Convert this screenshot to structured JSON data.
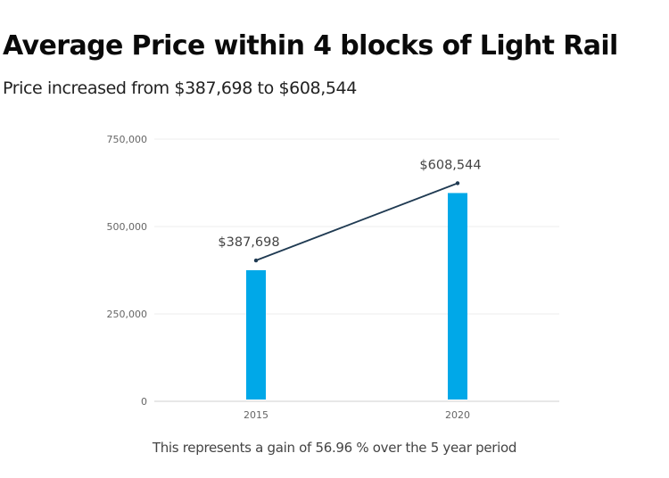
{
  "title": "Average Price within 4 blocks of Light Rail",
  "subtitle": "Price increased from $387,698 to $608,544",
  "caption": "This represents a gain of 56.96 % over the 5 year period",
  "colors": {
    "bar": "#00a8e8",
    "line": "#1f3a52",
    "grid": "#ececec",
    "axis": "#cfcfcf",
    "tick_text": "#666666",
    "label_text": "#444444"
  },
  "chart_data": {
    "type": "bar",
    "title": "Average Price within 4 blocks of Light Rail",
    "subtitle": "Price increased from $387,698 to $608,544",
    "xlabel": "",
    "ylabel": "",
    "categories": [
      "2015",
      "2020"
    ],
    "series": [
      {
        "name": "Average Price",
        "type": "bar",
        "values": [
          387698,
          608544
        ]
      },
      {
        "name": "Trend",
        "type": "line",
        "values": [
          387698,
          608544
        ]
      }
    ],
    "data_labels": [
      "$387,698",
      "$608,544"
    ],
    "ylim": [
      0,
      750000
    ],
    "yticks": [
      0,
      250000,
      500000,
      750000
    ],
    "ytick_labels": [
      "0",
      "250,000",
      "500,000",
      "750,000"
    ],
    "grid": true,
    "legend": "none"
  }
}
